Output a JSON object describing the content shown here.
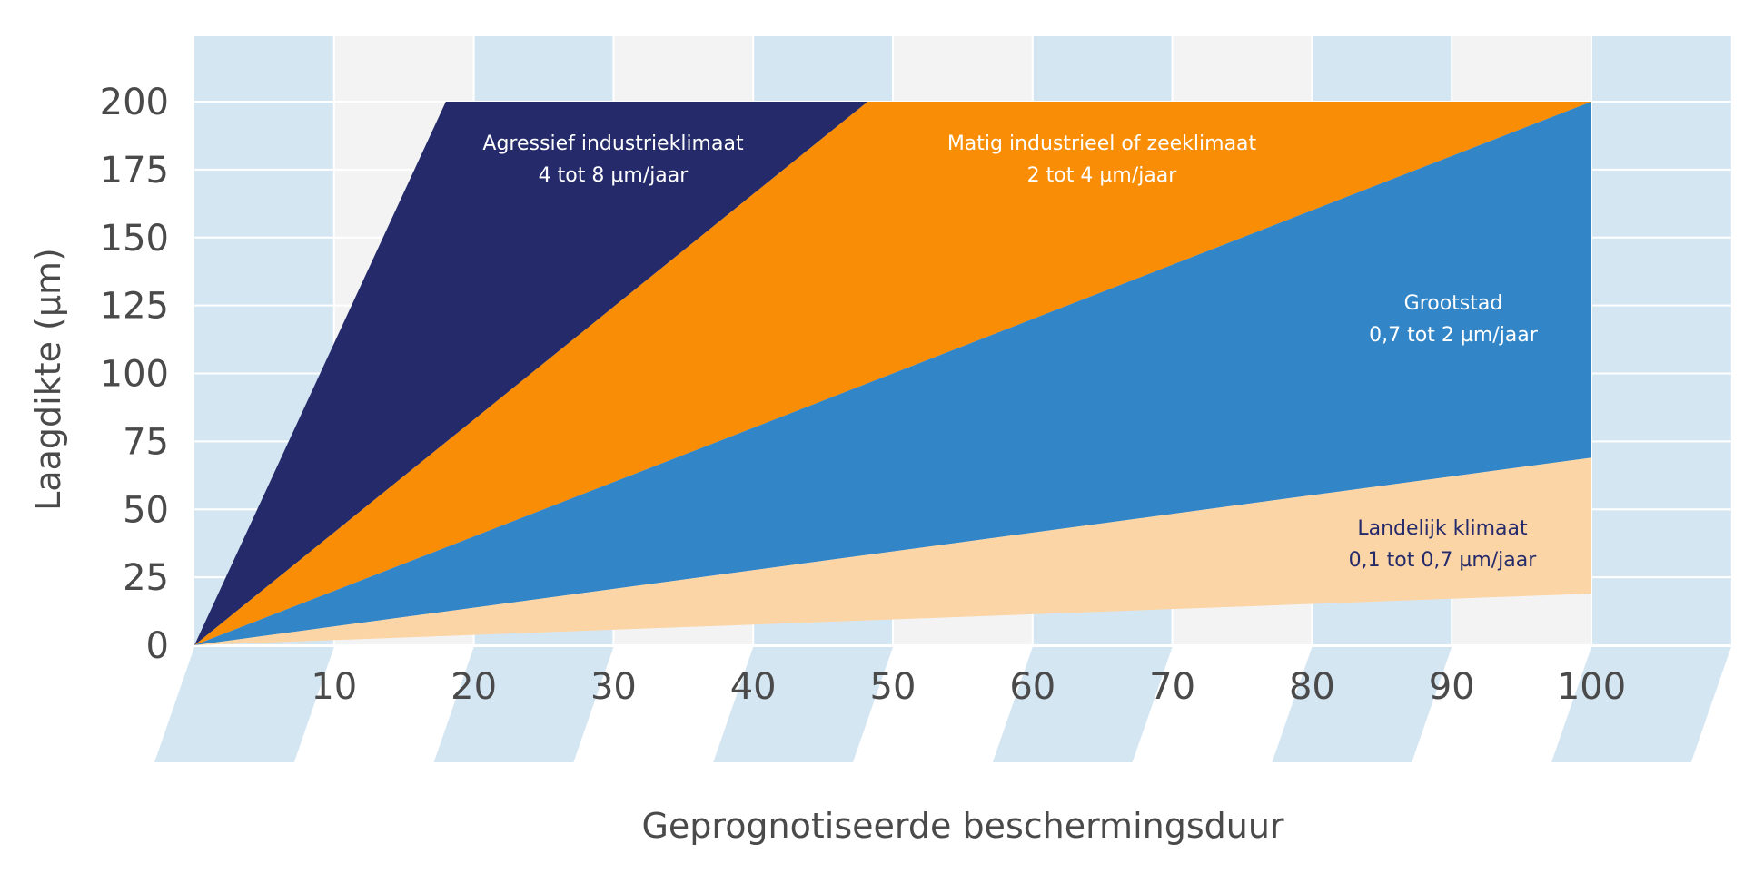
{
  "chart_data": {
    "type": "area",
    "title": "",
    "xlabel": "Geprognotiseerde beschermingsduur",
    "ylabel": "Laagdikte (µm)",
    "xlim": [
      0,
      100
    ],
    "ylim": [
      0,
      200
    ],
    "x_ticks": [
      "10",
      "20",
      "30",
      "40",
      "50",
      "60",
      "70",
      "80",
      "90",
      "100"
    ],
    "y_ticks": [
      "0",
      "25",
      "50",
      "75",
      "100",
      "125",
      "150",
      "175",
      "200"
    ],
    "grid": true,
    "legend": "none (labels inside regions)",
    "series": [
      {
        "name": "Agressief industrieklimaat",
        "rate_label": "4 tot 8 µm/jaar",
        "color": "#252b6a",
        "text_color": "#ffffff",
        "polygon": [
          [
            0,
            0
          ],
          [
            18,
            200
          ],
          [
            48.2,
            200
          ]
        ]
      },
      {
        "name": "Matig industrieel of zeeklimaat",
        "rate_label": "2 tot 4 µm/jaar",
        "color": "#f98d05",
        "text_color": "#ffffff",
        "polygon": [
          [
            0,
            0
          ],
          [
            48.2,
            200
          ],
          [
            100,
            200
          ]
        ]
      },
      {
        "name": "Grootstad",
        "rate_label": "0,7 tot 2 µm/jaar",
        "color": "#3285c6",
        "text_color": "#ffffff",
        "polygon": [
          [
            0,
            0
          ],
          [
            100,
            200
          ],
          [
            100,
            69
          ]
        ]
      },
      {
        "name": "Landelijk klimaat",
        "rate_label": "0,1 tot 0,7 µm/jaar",
        "color": "#fcd5a6",
        "text_color": "#252b6a",
        "polygon": [
          [
            0,
            0
          ],
          [
            100,
            69
          ],
          [
            100,
            19
          ]
        ]
      }
    ]
  },
  "labels": {
    "agressief": {
      "line1": "Agressief industrieklimaat",
      "line2": "4 tot 8 µm/jaar"
    },
    "matig": {
      "line1": "Matig industrieel of zeeklimaat",
      "line2": "2 tot 4 µm/jaar"
    },
    "grootstad": {
      "line1": "Grootstad",
      "line2": "0,7 tot 2 µm/jaar"
    },
    "landelijk": {
      "line1": "Landelijk klimaat",
      "line2": "0,1 tot 0,7 µm/jaar"
    }
  },
  "colors": {
    "stripe_blue": "#d5e6f3",
    "stripe_gray": "#f3f3f3",
    "gridline": "#ffffff",
    "text": "#4a4a4a"
  }
}
